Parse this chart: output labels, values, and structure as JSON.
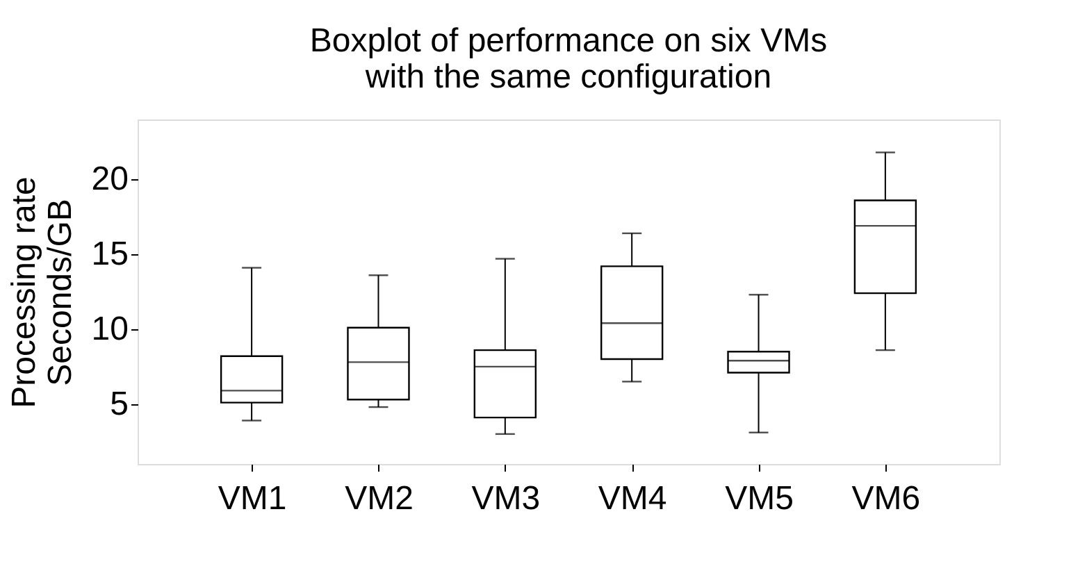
{
  "chart_data": {
    "type": "box",
    "title": [
      "Boxplot of performance on six VMs",
      "with the same configuration"
    ],
    "ylabel": [
      "Processing rate",
      "Seconds/GB"
    ],
    "categories": [
      "VM1",
      "VM2",
      "VM3",
      "VM4",
      "VM5",
      "VM6"
    ],
    "boxes": [
      {
        "low": 3.9,
        "q1": 5.1,
        "median": 5.9,
        "q3": 8.2,
        "high": 14.1
      },
      {
        "low": 4.8,
        "q1": 5.3,
        "median": 7.8,
        "q3": 10.1,
        "high": 13.6
      },
      {
        "low": 3.0,
        "q1": 4.1,
        "median": 7.5,
        "q3": 8.6,
        "high": 14.7
      },
      {
        "low": 6.5,
        "q1": 8.0,
        "median": 10.4,
        "q3": 14.2,
        "high": 16.4
      },
      {
        "low": 3.1,
        "q1": 7.1,
        "median": 7.9,
        "q3": 8.5,
        "high": 12.3
      },
      {
        "low": 8.6,
        "q1": 12.4,
        "median": 16.9,
        "q3": 18.6,
        "high": 21.8
      }
    ],
    "color": "#000000",
    "ylim": [
      1,
      24
    ],
    "yticks": [
      5,
      10,
      15,
      20
    ],
    "grid": false
  }
}
